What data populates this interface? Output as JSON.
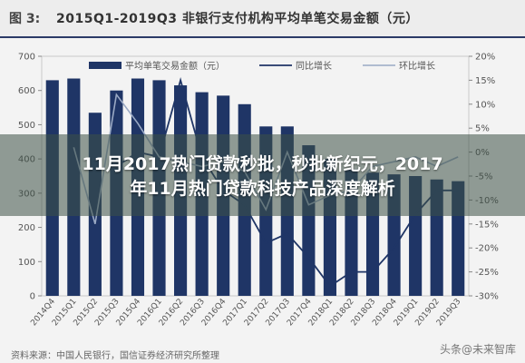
{
  "figure": {
    "number": "图 3:",
    "title": "2015Q1-2019Q3 非银行支付机构平均单笔交易金额（元）"
  },
  "overlay": {
    "line1": "11月2017热门贷款秒批，秒批新纪元，2017",
    "line2": "年11月热门贷款科技产品深度解析"
  },
  "source": "资料来源：中国人民银行，国信证券经济研究所整理",
  "watermark": "头条@未来智库",
  "colors": {
    "bar": "#1f3566",
    "yoy_line": "#1f3566",
    "qoq_line": "#9aa9c4",
    "grid": "#d6d6d6"
  },
  "chart_data": {
    "type": "bar",
    "categories": [
      "2014Q4",
      "2015Q1",
      "2015Q2",
      "2015Q3",
      "2015Q4",
      "2016Q1",
      "2016Q2",
      "2016Q3",
      "2016Q4",
      "2017Q1",
      "2017Q2",
      "2017Q3",
      "2017Q4",
      "2018Q1",
      "2018Q2",
      "2018Q3",
      "2018Q4",
      "2019Q1",
      "2019Q2",
      "2019Q3"
    ],
    "series": [
      {
        "name": "平均单笔交易金额（元）",
        "axis": "left",
        "kind": "bar",
        "values": [
          630,
          635,
          535,
          600,
          635,
          630,
          615,
          595,
          585,
          560,
          495,
          495,
          440,
          400,
          370,
          360,
          355,
          350,
          340,
          335
        ]
      },
      {
        "name": "同比增长",
        "axis": "right",
        "kind": "line",
        "values": [
          null,
          null,
          null,
          -3,
          0,
          -1,
          15,
          -1,
          -8,
          -11,
          -19,
          -17,
          -22,
          -28,
          -25,
          -25,
          -20,
          -13,
          -8,
          -8
        ]
      },
      {
        "name": "环比增长",
        "axis": "right",
        "kind": "line",
        "values": [
          null,
          1,
          -15,
          12,
          6,
          -1,
          -2,
          -3,
          -2,
          -4,
          -12,
          0,
          -11,
          -9,
          -8,
          -3,
          -2,
          -1,
          -3,
          -1
        ]
      }
    ],
    "y_left": {
      "ticks": [
        0,
        100,
        200,
        300,
        400,
        500,
        600,
        700
      ],
      "lim": [
        0,
        700
      ]
    },
    "y_right": {
      "ticks": [
        "-30%",
        "-25%",
        "-20%",
        "-15%",
        "-10%",
        "-5%",
        "0%",
        "5%",
        "10%",
        "15%",
        "20%"
      ],
      "lim": [
        -30,
        20
      ]
    },
    "legend": {
      "placement": "top",
      "entries": [
        "平均单笔交易金额（元）",
        "同比增长",
        "环比增长"
      ]
    },
    "grid": false
  }
}
